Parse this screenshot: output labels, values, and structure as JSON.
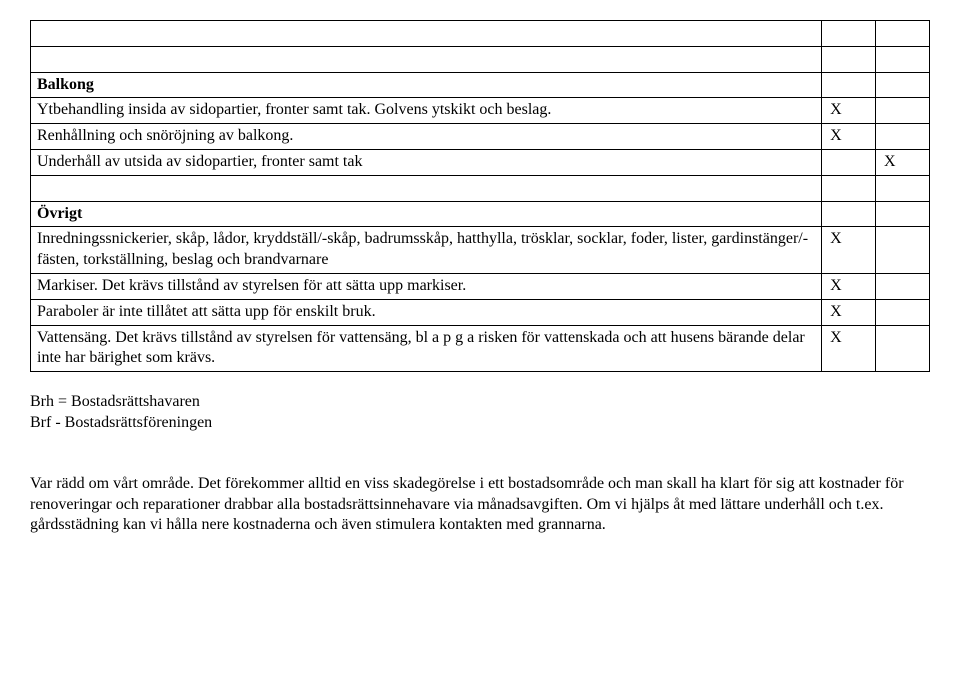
{
  "table": {
    "rows": [
      {
        "text": "",
        "bold": false,
        "x1": "",
        "x2": ""
      },
      {
        "text": "",
        "bold": false,
        "x1": "",
        "x2": ""
      },
      {
        "text": "Balkong",
        "bold": true,
        "x1": "",
        "x2": ""
      },
      {
        "text": "Ytbehandling insida av sidopartier, fronter samt tak. Golvens ytskikt och beslag.",
        "bold": false,
        "x1": "X",
        "x2": ""
      },
      {
        "text": "Renhållning och snöröjning av balkong.",
        "bold": false,
        "x1": "X",
        "x2": ""
      },
      {
        "text": "Underhåll av utsida av sidopartier, fronter samt tak",
        "bold": false,
        "x1": "",
        "x2": "X"
      },
      {
        "text": "",
        "bold": false,
        "x1": "",
        "x2": ""
      },
      {
        "text": "Övrigt",
        "bold": true,
        "x1": "",
        "x2": ""
      },
      {
        "text": "Inredningssnickerier, skåp, lådor, kryddställ/-skåp, badrumsskåp, hatthylla, trösklar, socklar, foder, lister, gardinstänger/-fästen, torkställning, beslag och brandvarnare",
        "bold": false,
        "x1": "X",
        "x2": ""
      },
      {
        "text": "Markiser. Det krävs tillstånd av styrelsen för att sätta upp markiser.",
        "bold": false,
        "x1": "X",
        "x2": ""
      },
      {
        "text": "Paraboler är inte tillåtet att sätta upp för enskilt bruk.",
        "bold": false,
        "x1": "X",
        "x2": ""
      },
      {
        "text": "Vattensäng. Det krävs tillstånd av styrelsen för vattensäng, bl a p g a risken för vattenskada och att husens bärande delar inte har bärighet som krävs.",
        "bold": false,
        "x1": "X",
        "x2": ""
      }
    ]
  },
  "footnotes": {
    "line1": "Brh = Bostadsrättshavaren",
    "line2": "Brf - Bostadsrättsföreningen"
  },
  "paragraph": "Var rädd om vårt område. Det förekommer alltid en viss skadegörelse i ett bostadsområde och man skall ha klart för sig att kostnader för renoveringar och reparationer drabbar alla bostadsrättsinnehavare via månadsavgiften. Om vi hjälps åt med lättare underhåll och t.ex. gårdsstädning kan vi hålla nere kostnaderna och även stimulera kontakten med grannarna."
}
